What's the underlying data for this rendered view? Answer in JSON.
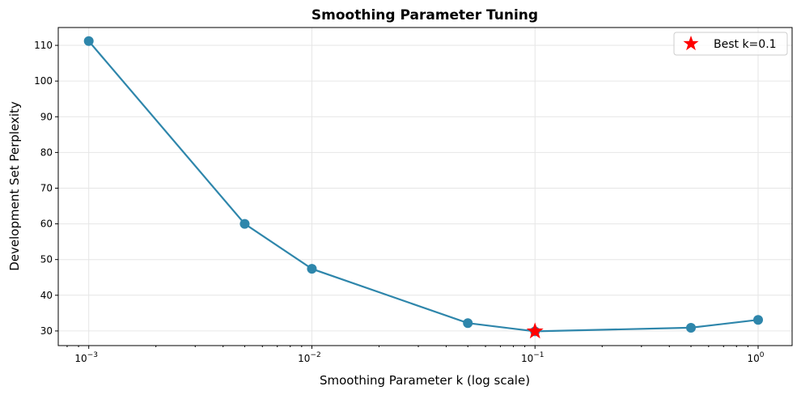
{
  "chart_data": {
    "type": "line",
    "title": "Smoothing Parameter Tuning",
    "xlabel": "Smoothing Parameter k (log scale)",
    "ylabel": "Development Set Perplexity",
    "xscale": "log",
    "xlim": [
      0.00073,
      1.42
    ],
    "ylim": [
      25.9,
      115
    ],
    "grid": true,
    "x_ticks": [
      {
        "value": 0.001,
        "base": "10",
        "exp": "−3"
      },
      {
        "value": 0.01,
        "base": "10",
        "exp": "−2"
      },
      {
        "value": 0.1,
        "base": "10",
        "exp": "−1"
      },
      {
        "value": 1,
        "base": "10",
        "exp": "0"
      }
    ],
    "y_ticks": [
      30,
      40,
      50,
      60,
      70,
      80,
      90,
      100,
      110
    ],
    "series": [
      {
        "x": [
          0.001,
          0.005,
          0.01,
          0.05,
          0.1,
          0.5,
          1.0
        ],
        "y": [
          111.2,
          60.0,
          47.4,
          32.2,
          29.9,
          30.9,
          33.1
        ],
        "color": "#2e86ab",
        "marker": "circle"
      }
    ],
    "best": {
      "x": 0.1,
      "y": 29.9,
      "color": "#ff0000",
      "marker": "star"
    },
    "legend": {
      "placement": "upper-right",
      "entries": [
        {
          "label": "Best k=0.1",
          "marker": "star",
          "color": "#ff0000"
        }
      ]
    }
  }
}
